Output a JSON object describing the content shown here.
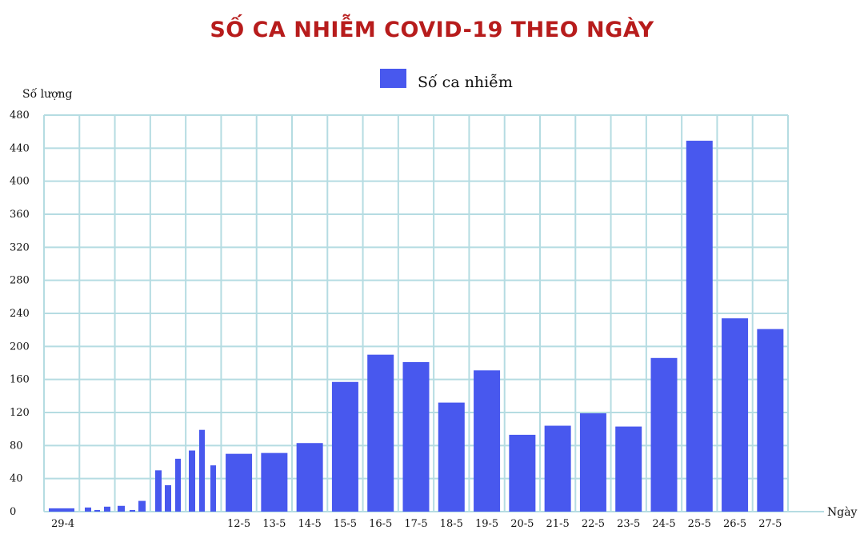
{
  "colors": {
    "title": "#b71c1c",
    "bar": "#4858ee",
    "grid": "#b5dce2",
    "axis": "#999999"
  },
  "chart_data": {
    "type": "bar",
    "title": "SỐ CA NHIỄM COVID-19 THEO NGÀY",
    "xlabel": "Ngày",
    "ylabel": "Số lượng",
    "ylim": [
      0,
      480
    ],
    "yticks": [
      0,
      40,
      80,
      120,
      160,
      200,
      240,
      280,
      320,
      360,
      400,
      440,
      480
    ],
    "legend": {
      "label": "Số ca nhiễm",
      "position": "top-center"
    },
    "grid": true,
    "early_period": {
      "first_label": "29-4",
      "values": [
        4,
        5,
        2,
        6,
        7,
        2,
        13,
        50,
        32,
        64,
        74,
        99,
        56
      ]
    },
    "categories": [
      "12-5",
      "13-5",
      "14-5",
      "15-5",
      "16-5",
      "17-5",
      "18-5",
      "19-5",
      "20-5",
      "21-5",
      "22-5",
      "23-5",
      "24-5",
      "25-5",
      "26-5",
      "27-5"
    ],
    "series": [
      {
        "name": "Số ca nhiễm",
        "values": [
          70,
          71,
          83,
          157,
          190,
          181,
          132,
          171,
          93,
          104,
          119,
          103,
          186,
          449,
          234,
          221
        ]
      }
    ]
  }
}
